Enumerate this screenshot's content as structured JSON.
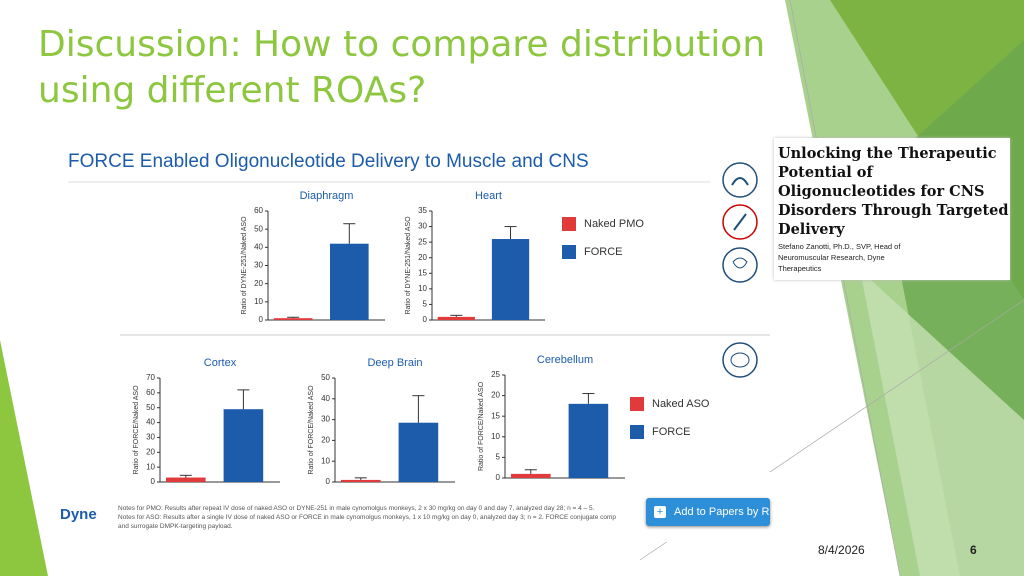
{
  "slide": {
    "title": "Discussion: How to compare distribution using different ROAs?",
    "date": "8/4/2026",
    "page": "6"
  },
  "figure": {
    "heading": "FORCE Enabled Oligonucleotide Delivery to Muscle and CNS",
    "logo": "Dyne",
    "notes": [
      "Notes for PMO: Results after repeat IV dose of naked ASO or DYNE-251 in male cynomolgus monkeys, 2 x 30 mg/kg on day 0 and day 7, analyzed day 28; n = 4 – 5.",
      "Notes for ASO: Results after a single IV dose of naked ASO or FORCE in male cynomolgus monkeys, 1 x 10 mg/kg on day 0, analyzed day 3; n = 2. FORCE conjugate comp",
      "and surrogate DMPK-targeting payload."
    ]
  },
  "button": {
    "label": "Add to Papers by R"
  },
  "card": {
    "title": "Unlocking the Therapeutic Potential of Oligonucleotides for CNS Disorders Through Targeted Delivery",
    "byline": "Stefano Zanotti, Ph.D., SVP, Head of Neuromuscular Research, Dyne Therapeutics"
  },
  "chart_data": [
    {
      "type": "bar",
      "series": [
        {
          "name": "Naked PMO",
          "color": "#e03a3a"
        },
        {
          "name": "FORCE",
          "color": "#1c5caa"
        }
      ],
      "panels": [
        {
          "title": "Diaphragm",
          "ylabel": "Ratio of DYNE-251/Naked ASO",
          "ylim": [
            0,
            60
          ],
          "yticks": [
            0,
            10,
            20,
            30,
            40,
            50,
            60
          ],
          "values": [
            1,
            42
          ],
          "errors": [
            0.5,
            11
          ]
        },
        {
          "title": "Heart",
          "ylabel": "Ratio of DYNE-251/Naked ASO",
          "ylim": [
            0,
            35
          ],
          "yticks": [
            0,
            5,
            10,
            15,
            20,
            25,
            30,
            35
          ],
          "values": [
            1,
            26
          ],
          "errors": [
            0.5,
            4
          ]
        }
      ]
    },
    {
      "type": "bar",
      "series": [
        {
          "name": "Naked ASO",
          "color": "#e03a3a"
        },
        {
          "name": "FORCE",
          "color": "#1c5caa"
        }
      ],
      "panels": [
        {
          "title": "Cortex",
          "ylabel": "Ratio of FORCE/Naked ASO",
          "ylim": [
            0,
            70
          ],
          "yticks": [
            0,
            10,
            20,
            30,
            40,
            50,
            60,
            70
          ],
          "values": [
            3,
            49
          ],
          "errors": [
            1.5,
            13
          ]
        },
        {
          "title": "Deep Brain",
          "ylabel": "Ratio of FORCE/Naked ASO",
          "ylim": [
            0,
            50
          ],
          "yticks": [
            0,
            10,
            20,
            30,
            40,
            50
          ],
          "values": [
            1,
            28.5
          ],
          "errors": [
            1,
            13
          ]
        },
        {
          "title": "Cerebellum",
          "ylabel": "Ratio of FORCE/Naked ASO",
          "ylim": [
            0,
            25
          ],
          "yticks": [
            0,
            5,
            10,
            15,
            20,
            25
          ],
          "values": [
            1,
            18
          ],
          "errors": [
            1,
            2.5
          ]
        }
      ]
    }
  ]
}
